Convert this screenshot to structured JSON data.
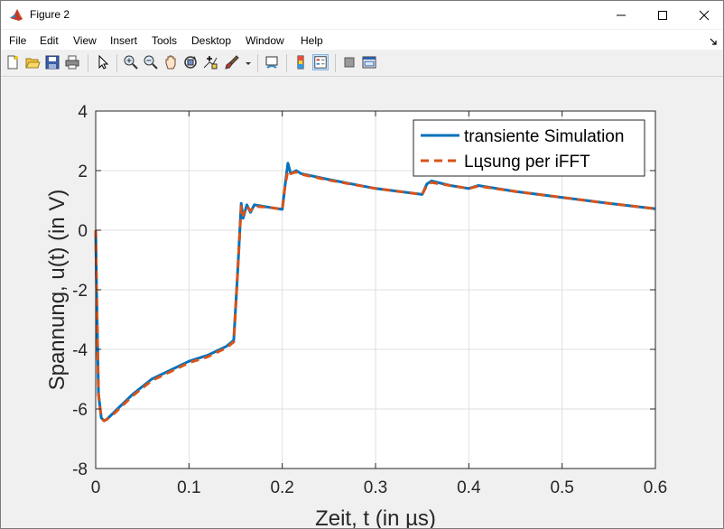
{
  "window": {
    "title": "Figure 2",
    "minimize_icon": "minimize-icon",
    "maximize_icon": "maximize-icon",
    "close_icon": "close-icon"
  },
  "menubar": {
    "items": [
      "File",
      "Edit",
      "View",
      "Insert",
      "Tools",
      "Desktop",
      "Window",
      "Help"
    ]
  },
  "toolbar": {
    "icons": [
      "new-figure-icon",
      "open-file-icon",
      "save-icon",
      "print-icon",
      "pointer-icon",
      "zoom-in-icon",
      "zoom-out-icon",
      "pan-icon",
      "rotate-3d-icon",
      "data-cursor-icon",
      "brush-icon",
      "link-plot-icon",
      "colorbar-icon",
      "legend-icon",
      "hide-plot-tools-icon",
      "show-plot-tools-icon"
    ]
  },
  "chart_data": {
    "type": "line",
    "xlabel": "Zeit, t (in µs)",
    "ylabel": "Spannung, u(t) (in V)",
    "xlim": [
      0,
      0.6
    ],
    "ylim": [
      -8,
      4
    ],
    "xticks": [
      "0",
      "0.1",
      "0.2",
      "0.3",
      "0.4",
      "0.5",
      "0.6"
    ],
    "yticks": [
      "-8",
      "-6",
      "-4",
      "-2",
      "0",
      "2",
      "4"
    ],
    "grid": true,
    "legend_position": "top-right",
    "series": [
      {
        "name": "transiente Simulation",
        "color": "#0072bd",
        "style": "solid",
        "x": [
          0,
          0.001,
          0.003,
          0.006,
          0.009,
          0.012,
          0.02,
          0.04,
          0.06,
          0.08,
          0.1,
          0.12,
          0.14,
          0.148,
          0.152,
          0.156,
          0.158,
          0.162,
          0.166,
          0.17,
          0.18,
          0.19,
          0.2,
          0.203,
          0.206,
          0.209,
          0.215,
          0.22,
          0.25,
          0.3,
          0.35,
          0.355,
          0.36,
          0.38,
          0.4,
          0.41,
          0.45,
          0.5,
          0.55,
          0.6
        ],
        "y": [
          0,
          -2.0,
          -5.5,
          -6.3,
          -6.4,
          -6.35,
          -6.1,
          -5.5,
          -5.0,
          -4.7,
          -4.4,
          -4.2,
          -3.9,
          -3.7,
          -1.5,
          0.9,
          0.4,
          0.85,
          0.6,
          0.85,
          0.8,
          0.75,
          0.7,
          1.5,
          2.25,
          1.9,
          2.0,
          1.9,
          1.7,
          1.4,
          1.2,
          1.55,
          1.65,
          1.5,
          1.4,
          1.5,
          1.3,
          1.1,
          0.9,
          0.72
        ]
      },
      {
        "name": "Lцsung per iFFT",
        "color": "#d95319",
        "style": "dashed",
        "x": [
          0,
          0.001,
          0.003,
          0.006,
          0.009,
          0.012,
          0.02,
          0.04,
          0.06,
          0.08,
          0.1,
          0.12,
          0.14,
          0.148,
          0.152,
          0.156,
          0.158,
          0.162,
          0.166,
          0.17,
          0.18,
          0.19,
          0.2,
          0.203,
          0.206,
          0.209,
          0.215,
          0.22,
          0.25,
          0.3,
          0.35,
          0.355,
          0.36,
          0.38,
          0.4,
          0.41,
          0.45,
          0.5,
          0.55,
          0.6
        ],
        "y": [
          0,
          -2.0,
          -5.5,
          -6.3,
          -6.4,
          -6.35,
          -6.15,
          -5.55,
          -5.05,
          -4.75,
          -4.45,
          -4.25,
          -3.95,
          -3.75,
          -1.5,
          0.8,
          0.5,
          0.8,
          0.65,
          0.8,
          0.78,
          0.75,
          0.7,
          1.5,
          2.0,
          1.9,
          1.95,
          1.88,
          1.68,
          1.4,
          1.2,
          1.5,
          1.6,
          1.5,
          1.4,
          1.48,
          1.3,
          1.1,
          0.9,
          0.72
        ]
      }
    ]
  }
}
